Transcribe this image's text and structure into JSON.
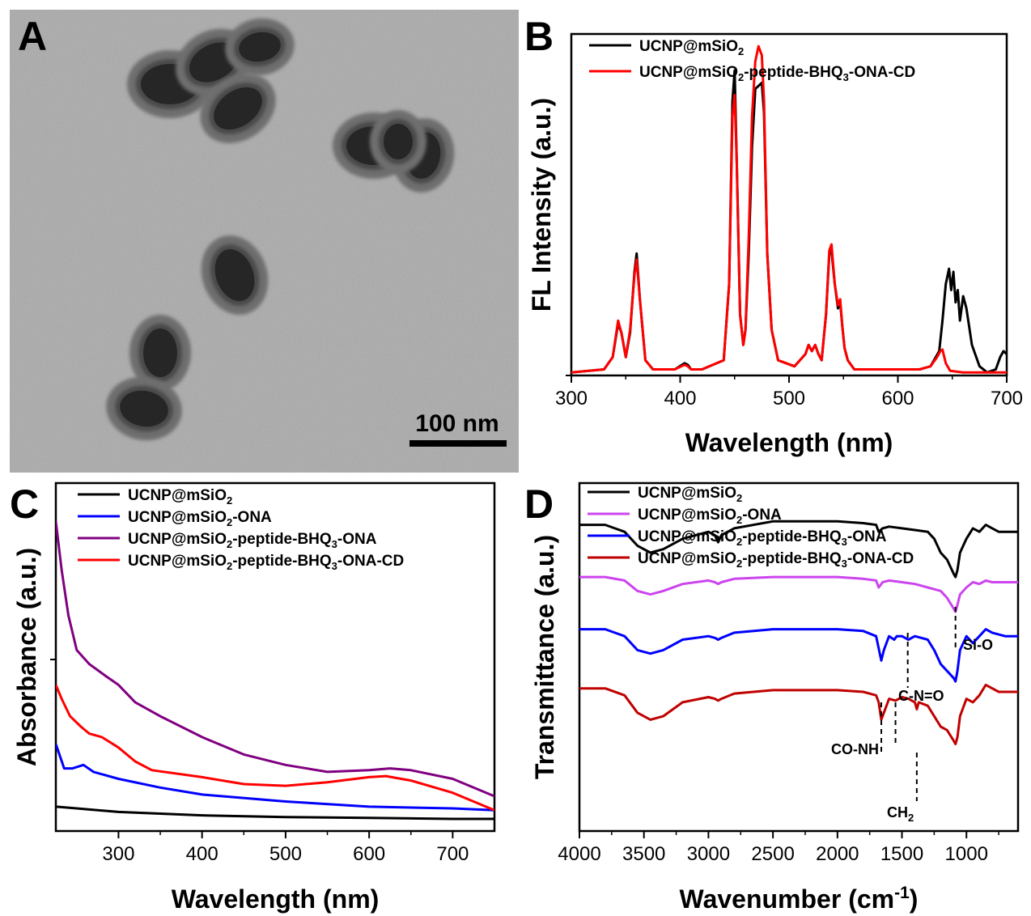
{
  "panels": {
    "A": {
      "label": "A",
      "scalebar_label": "100 nm",
      "particles": [
        {
          "cx": 210,
          "cy": 104,
          "rx": 36,
          "ry": 25,
          "rot": 0
        },
        {
          "cx": 264,
          "cy": 77,
          "rx": 32,
          "ry": 22,
          "rot": -28
        },
        {
          "cx": 321,
          "cy": 58,
          "rx": 26,
          "ry": 18,
          "rot": -10
        },
        {
          "cx": 294,
          "cy": 134,
          "rx": 33,
          "ry": 22,
          "rot": -35
        },
        {
          "cx": 462,
          "cy": 180,
          "rx": 34,
          "ry": 24,
          "rot": 0
        },
        {
          "cx": 523,
          "cy": 192,
          "rx": 21,
          "ry": 29,
          "rot": 10
        },
        {
          "cx": 492,
          "cy": 175,
          "rx": 18,
          "ry": 22,
          "rot": 0
        },
        {
          "cx": 290,
          "cy": 340,
          "rx": 23,
          "ry": 33,
          "rot": -20
        },
        {
          "cx": 198,
          "cy": 436,
          "rx": 21,
          "ry": 30,
          "rot": 0
        },
        {
          "cx": 178,
          "cy": 505,
          "rx": 30,
          "ry": 22,
          "rot": 10
        }
      ]
    },
    "B": {
      "label": "B"
    },
    "C": {
      "label": "C"
    },
    "D": {
      "label": "D",
      "annotations": [
        {
          "text": "Si-O",
          "x": 1085
        },
        {
          "text": "C-N=O",
          "x": 1455
        },
        {
          "text": "CO-NH",
          "x": 1660
        },
        {
          "text": "CH",
          "sub": "2",
          "x": 1385
        }
      ]
    }
  },
  "chart_data": [
    {
      "id": "B",
      "type": "line",
      "xlabel": "Wavelength (nm)",
      "ylabel": "FL Intensity (a.u.)",
      "xlim": [
        300,
        700
      ],
      "xticks": [
        300,
        400,
        500,
        600,
        700
      ],
      "ylim": [
        0,
        1.12
      ],
      "legend_position": "top-left",
      "series": [
        {
          "legend": [
            "UCNP@mSiO",
            "2",
            ""
          ],
          "color": "#000000",
          "x": [
            300,
            330,
            338,
            343,
            346,
            350,
            354,
            358,
            360,
            363,
            368,
            375,
            395,
            404,
            407,
            410,
            420,
            440,
            445,
            448,
            450,
            452,
            455,
            458,
            460,
            463,
            466,
            469,
            472,
            475,
            477,
            480,
            484,
            490,
            505,
            515,
            518,
            521,
            524,
            527,
            530,
            534,
            537,
            539,
            542,
            545,
            547,
            549,
            551,
            554,
            560,
            620,
            630,
            638,
            641,
            644,
            647,
            649,
            651,
            653,
            655,
            657,
            660,
            663,
            668,
            675,
            682,
            690,
            694,
            697,
            700
          ],
          "y": [
            0.01,
            0.02,
            0.06,
            0.17,
            0.14,
            0.06,
            0.14,
            0.34,
            0.4,
            0.25,
            0.05,
            0.02,
            0.02,
            0.04,
            0.035,
            0.02,
            0.02,
            0.05,
            0.3,
            0.9,
            1.0,
            0.7,
            0.2,
            0.1,
            0.15,
            0.4,
            0.75,
            0.94,
            0.95,
            0.96,
            0.86,
            0.4,
            0.15,
            0.05,
            0.03,
            0.07,
            0.1,
            0.08,
            0.1,
            0.07,
            0.05,
            0.2,
            0.4,
            0.41,
            0.3,
            0.22,
            0.24,
            0.16,
            0.09,
            0.05,
            0.02,
            0.02,
            0.03,
            0.08,
            0.18,
            0.3,
            0.35,
            0.28,
            0.34,
            0.24,
            0.28,
            0.18,
            0.26,
            0.22,
            0.1,
            0.03,
            0.01,
            0.02,
            0.06,
            0.08,
            0.07
          ]
        },
        {
          "legend": [
            "UCNP@mSiO",
            "2",
            "-peptide-BHQ",
            "3",
            "-ONA-CD"
          ],
          "color": "#ff0000",
          "x": [
            300,
            330,
            338,
            343,
            346,
            350,
            354,
            358,
            360,
            363,
            368,
            375,
            395,
            404,
            407,
            410,
            420,
            440,
            445,
            448,
            450,
            452,
            455,
            458,
            460,
            463,
            466,
            469,
            472,
            475,
            477,
            480,
            484,
            490,
            505,
            515,
            518,
            521,
            524,
            527,
            530,
            534,
            537,
            539,
            542,
            545,
            547,
            549,
            551,
            554,
            560,
            620,
            630,
            636,
            639,
            641,
            644,
            648,
            660,
            680,
            700
          ],
          "y": [
            0.01,
            0.02,
            0.06,
            0.18,
            0.14,
            0.06,
            0.15,
            0.33,
            0.38,
            0.25,
            0.05,
            0.02,
            0.02,
            0.035,
            0.03,
            0.02,
            0.02,
            0.05,
            0.3,
            0.85,
            0.92,
            0.7,
            0.2,
            0.1,
            0.15,
            0.45,
            0.85,
            1.03,
            1.08,
            1.05,
            0.9,
            0.4,
            0.15,
            0.05,
            0.03,
            0.07,
            0.1,
            0.08,
            0.1,
            0.07,
            0.05,
            0.2,
            0.41,
            0.43,
            0.3,
            0.23,
            0.25,
            0.16,
            0.09,
            0.05,
            0.02,
            0.02,
            0.03,
            0.06,
            0.08,
            0.085,
            0.04,
            0.015,
            0.01,
            0.01,
            0.01
          ]
        }
      ]
    },
    {
      "id": "C",
      "type": "line",
      "xlabel": "Wavelength (nm)",
      "ylabel": "Absorbance (a.u.)",
      "xlim": [
        225,
        750
      ],
      "xticks": [
        300,
        400,
        500,
        600,
        700
      ],
      "ylim": [
        0,
        1
      ],
      "legend_position": "top-left",
      "series": [
        {
          "legend": [
            "UCNP@mSiO",
            "2",
            ""
          ],
          "color": "#000000",
          "x": [
            225,
            250,
            300,
            350,
            400,
            500,
            600,
            700,
            750
          ],
          "y": [
            0.07,
            0.065,
            0.055,
            0.05,
            0.045,
            0.04,
            0.038,
            0.035,
            0.035
          ]
        },
        {
          "legend": [
            "UCNP@mSiO",
            "2",
            "-ONA"
          ],
          "color": "#0000ff",
          "x": [
            225,
            235,
            245,
            258,
            270,
            300,
            350,
            400,
            500,
            600,
            700,
            750
          ],
          "y": [
            0.25,
            0.18,
            0.18,
            0.19,
            0.17,
            0.15,
            0.125,
            0.105,
            0.085,
            0.07,
            0.065,
            0.06
          ]
        },
        {
          "legend": [
            "UCNP@mSiO",
            "2",
            "-peptide-BHQ",
            "3",
            "-ONA"
          ],
          "color": "#800080",
          "x": [
            225,
            232,
            240,
            250,
            265,
            285,
            300,
            320,
            350,
            400,
            450,
            500,
            550,
            600,
            625,
            650,
            700,
            750
          ],
          "y": [
            0.89,
            0.75,
            0.62,
            0.52,
            0.48,
            0.445,
            0.42,
            0.37,
            0.33,
            0.27,
            0.22,
            0.19,
            0.17,
            0.175,
            0.18,
            0.175,
            0.15,
            0.1
          ]
        },
        {
          "legend": [
            "UCNP@mSiO",
            "2",
            "-peptide-BHQ",
            "3",
            "-ONA-CD"
          ],
          "color": "#ff0000",
          "x": [
            225,
            232,
            242,
            255,
            265,
            280,
            300,
            320,
            340,
            400,
            450,
            500,
            550,
            600,
            620,
            650,
            700,
            750
          ],
          "y": [
            0.42,
            0.38,
            0.33,
            0.3,
            0.28,
            0.27,
            0.24,
            0.2,
            0.175,
            0.155,
            0.135,
            0.13,
            0.14,
            0.155,
            0.158,
            0.145,
            0.11,
            0.06
          ]
        }
      ]
    },
    {
      "id": "D",
      "type": "line",
      "xlabel": "Wavenumber (cm",
      "xlabel_sup": "-1",
      "xlabel_end": ")",
      "ylabel": "Transmittance (a.u.)",
      "xlim": [
        4000,
        600
      ],
      "xticks": [
        4000,
        3500,
        3000,
        2500,
        2000,
        1500,
        1000
      ],
      "ylim": [
        0,
        1
      ],
      "legend_position": "top-left",
      "series": [
        {
          "legend": [
            "UCNP@mSiO",
            "2",
            ""
          ],
          "color": "#000000",
          "x": [
            4000,
            3800,
            3650,
            3550,
            3450,
            3350,
            3200,
            3000,
            2950,
            2925,
            2900,
            2850,
            2800,
            2500,
            2000,
            1800,
            1700,
            1680,
            1650,
            1600,
            1500,
            1400,
            1300,
            1250,
            1200,
            1150,
            1100,
            1085,
            1070,
            1050,
            1000,
            950,
            900,
            850,
            800,
            750,
            700,
            600
          ],
          "y": [
            0.88,
            0.88,
            0.86,
            0.82,
            0.8,
            0.81,
            0.84,
            0.86,
            0.85,
            0.83,
            0.85,
            0.86,
            0.87,
            0.89,
            0.89,
            0.885,
            0.88,
            0.86,
            0.87,
            0.875,
            0.87,
            0.865,
            0.86,
            0.84,
            0.8,
            0.78,
            0.74,
            0.73,
            0.75,
            0.8,
            0.84,
            0.87,
            0.86,
            0.88,
            0.87,
            0.86,
            0.86,
            0.86
          ]
        },
        {
          "legend": [
            "UCNP@mSiO",
            "2",
            "-ONA"
          ],
          "color": "#cc44ee",
          "x": [
            4000,
            3800,
            3650,
            3550,
            3450,
            3350,
            3200,
            3000,
            2950,
            2925,
            2900,
            2800,
            2500,
            2000,
            1800,
            1700,
            1680,
            1650,
            1600,
            1500,
            1400,
            1300,
            1200,
            1150,
            1100,
            1085,
            1070,
            1050,
            1000,
            950,
            900,
            850,
            800,
            700,
            600
          ],
          "y": [
            0.73,
            0.73,
            0.72,
            0.69,
            0.68,
            0.69,
            0.71,
            0.72,
            0.715,
            0.71,
            0.715,
            0.725,
            0.73,
            0.73,
            0.725,
            0.72,
            0.7,
            0.715,
            0.72,
            0.715,
            0.71,
            0.7,
            0.69,
            0.67,
            0.64,
            0.63,
            0.65,
            0.68,
            0.7,
            0.715,
            0.71,
            0.72,
            0.715,
            0.715,
            0.715
          ]
        },
        {
          "legend": [
            "UCNP@mSiO",
            "2",
            "-peptide-BHQ",
            "3",
            "-ONA"
          ],
          "color": "#0000ff",
          "x": [
            4000,
            3800,
            3650,
            3550,
            3450,
            3350,
            3200,
            3000,
            2950,
            2925,
            2900,
            2800,
            2500,
            2000,
            1800,
            1700,
            1660,
            1640,
            1600,
            1560,
            1540,
            1500,
            1450,
            1400,
            1300,
            1250,
            1200,
            1150,
            1100,
            1085,
            1070,
            1050,
            1000,
            950,
            900,
            850,
            800,
            700,
            600
          ],
          "y": [
            0.58,
            0.58,
            0.56,
            0.52,
            0.51,
            0.52,
            0.55,
            0.56,
            0.555,
            0.55,
            0.555,
            0.57,
            0.58,
            0.58,
            0.575,
            0.56,
            0.49,
            0.52,
            0.56,
            0.55,
            0.56,
            0.56,
            0.55,
            0.56,
            0.55,
            0.52,
            0.48,
            0.46,
            0.44,
            0.43,
            0.46,
            0.52,
            0.56,
            0.54,
            0.56,
            0.58,
            0.57,
            0.56,
            0.56
          ]
        },
        {
          "legend": [
            "UCNP@mSiO",
            "2",
            "-peptide-BHQ",
            "3",
            "-ONA-CD"
          ],
          "color": "#c00000",
          "x": [
            4000,
            3800,
            3650,
            3550,
            3450,
            3350,
            3200,
            3000,
            2950,
            2925,
            2900,
            2800,
            2500,
            2000,
            1800,
            1700,
            1680,
            1660,
            1640,
            1600,
            1550,
            1500,
            1450,
            1400,
            1385,
            1370,
            1300,
            1250,
            1200,
            1150,
            1100,
            1085,
            1070,
            1050,
            1000,
            950,
            900,
            850,
            800,
            750,
            700,
            600
          ],
          "y": [
            0.41,
            0.41,
            0.39,
            0.34,
            0.32,
            0.33,
            0.37,
            0.385,
            0.38,
            0.375,
            0.38,
            0.395,
            0.405,
            0.405,
            0.4,
            0.39,
            0.37,
            0.32,
            0.34,
            0.38,
            0.375,
            0.385,
            0.38,
            0.37,
            0.35,
            0.37,
            0.36,
            0.33,
            0.3,
            0.29,
            0.26,
            0.25,
            0.27,
            0.33,
            0.38,
            0.37,
            0.39,
            0.42,
            0.41,
            0.4,
            0.4,
            0.4
          ]
        }
      ]
    }
  ]
}
